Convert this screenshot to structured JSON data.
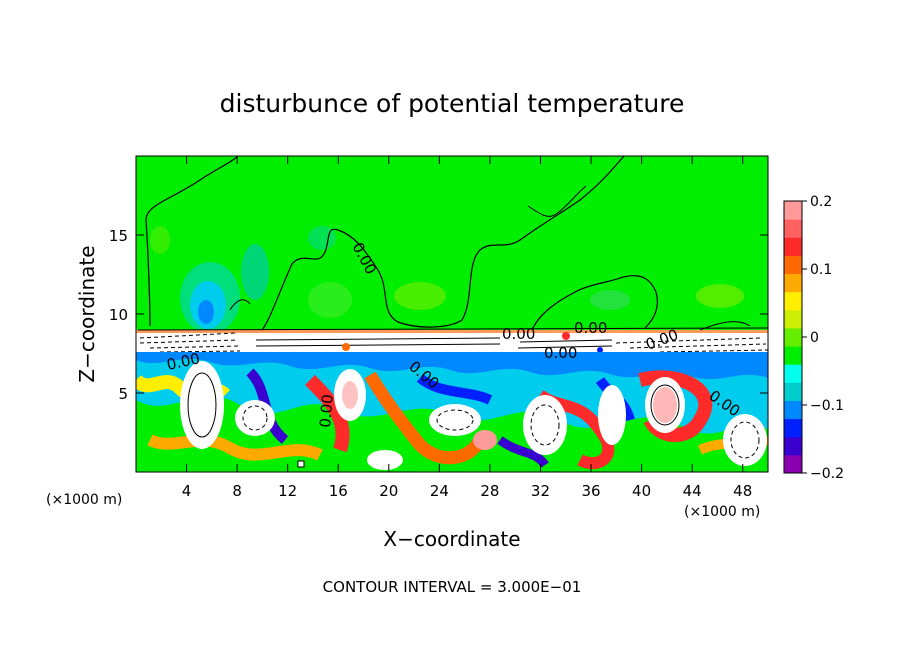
{
  "chart_data": {
    "type": "heatmap",
    "title": "disturbunce of potential temperature",
    "xlabel": "X−coordinate",
    "ylabel": "Z−coordinate",
    "x_unit": "(×1000 m)",
    "footer": "CONTOUR INTERVAL = 3.000E−01",
    "xlim": [
      0,
      50
    ],
    "ylim": [
      0,
      20
    ],
    "x_ticks": [
      4,
      8,
      12,
      16,
      20,
      24,
      28,
      32,
      36,
      40,
      44,
      48
    ],
    "y_ticks": [
      5,
      10,
      15
    ],
    "colorbar": {
      "range": [
        -0.2,
        0.2
      ],
      "tick_values": [
        0.2,
        0.1,
        0,
        -0.1,
        -0.2
      ],
      "tick_labels": [
        "0.2",
        "0.1",
        "0",
        "−0.1",
        "−0.2"
      ]
    },
    "contour_labels": [
      "0.00",
      "0.00",
      "0.00",
      "0.00",
      "0.00",
      "0.00",
      "0.00",
      "0.00",
      "0.00"
    ]
  },
  "colors": {
    "background": "#00ee00",
    "colorscale": [
      "#8a00b0",
      "#3a00d0",
      "#0020ff",
      "#0088ff",
      "#00cccc",
      "#00ffee",
      "#00ee00",
      "#66ee00",
      "#ccee00",
      "#ffee00",
      "#ffaa00",
      "#ff6a00",
      "#ff2a2a",
      "#ff6060",
      "#ff9a9a"
    ]
  }
}
